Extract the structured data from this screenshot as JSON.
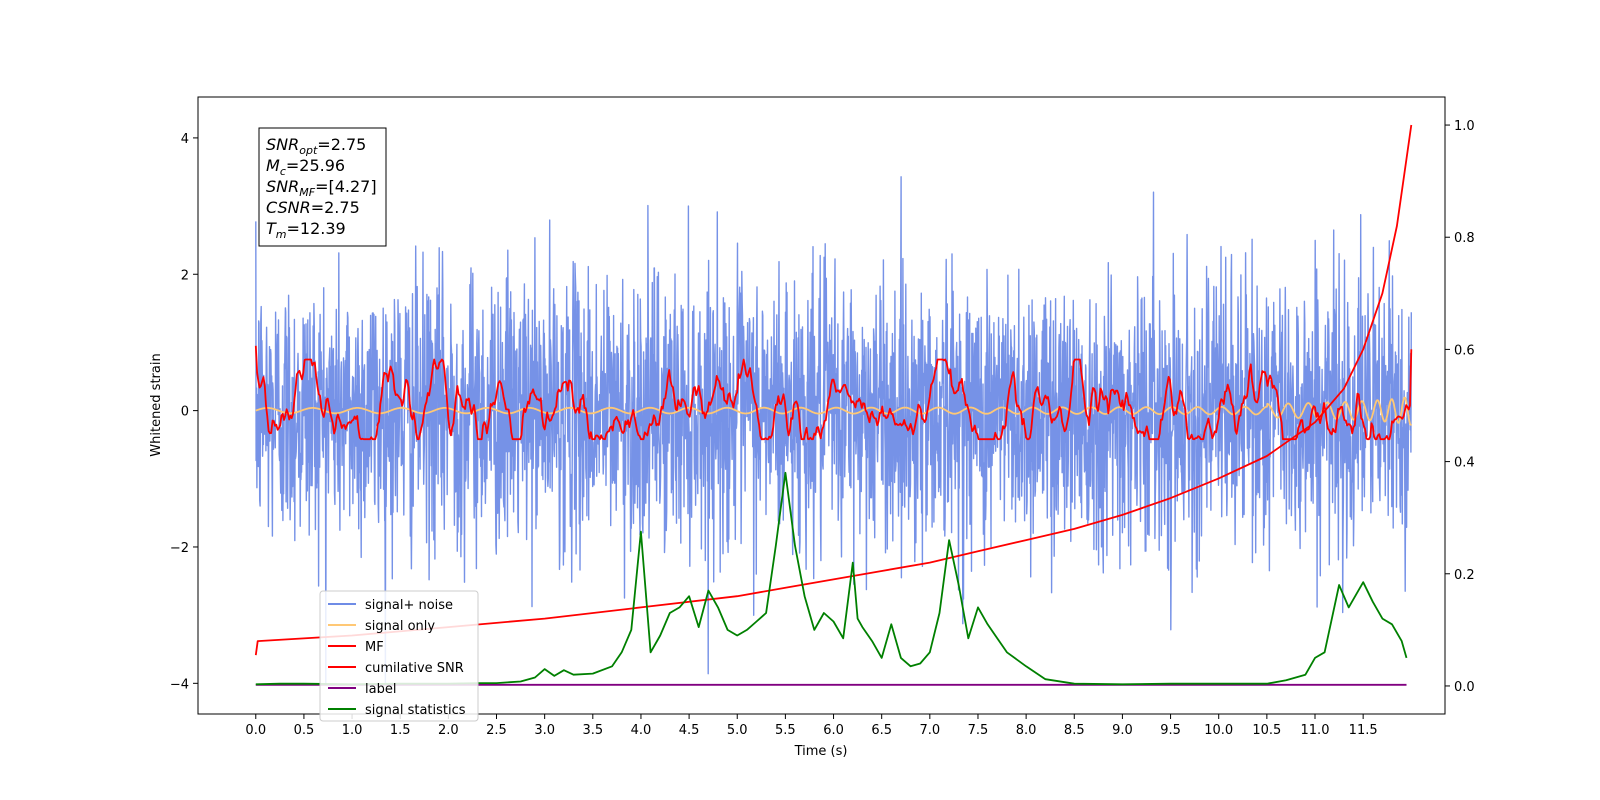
{
  "chart_data": {
    "type": "line",
    "xlabel": "Time (s)",
    "ylabel": "Whitened strain",
    "xlim": [
      -0.6,
      12.35
    ],
    "ylim": [
      -4.45,
      4.6
    ],
    "y2lim": [
      -0.05,
      1.05
    ],
    "xticks": [
      0.0,
      0.5,
      1.0,
      1.5,
      2.0,
      2.5,
      3.0,
      3.5,
      4.0,
      4.5,
      5.0,
      5.5,
      6.0,
      6.5,
      7.0,
      7.5,
      8.0,
      8.5,
      9.0,
      9.5,
      10.0,
      10.5,
      11.0,
      11.5
    ],
    "xtick_labels": [
      "0.0",
      "0.5",
      "1.0",
      "1.5",
      "2.0",
      "2.5",
      "3.0",
      "3.5",
      "4.0",
      "4.5",
      "5.0",
      "5.5",
      "6.0",
      "6.5",
      "7.0",
      "7.5",
      "8.0",
      "8.5",
      "9.0",
      "9.5",
      "10.0",
      "10.5",
      "11.0",
      "11.5"
    ],
    "yticks": [
      -4,
      -2,
      0,
      2,
      4
    ],
    "ytick_labels": [
      "−4",
      "−2",
      "0",
      "2",
      "4"
    ],
    "y2ticks": [
      0.0,
      0.2,
      0.4,
      0.6,
      0.8,
      1.0
    ],
    "y2tick_labels": [
      "0.0",
      "0.2",
      "0.4",
      "0.6",
      "0.8",
      "1.0"
    ],
    "grid": false,
    "legend_position": "lower-left",
    "series": [
      {
        "name": "signal+ noise",
        "axis": "left",
        "color": "#6f8ce6",
        "style": "noise",
        "x_range": [
          0.0,
          12.0
        ],
        "std": 1.0,
        "values": []
      },
      {
        "name": "signal only",
        "axis": "left",
        "color": "#ffc875",
        "style": "chirp",
        "x_range": [
          0.0,
          12.0
        ],
        "values": []
      },
      {
        "name": "MF",
        "axis": "left",
        "color": "#ff0000",
        "style": "smooth-noise",
        "x_range": [
          0.0,
          12.0
        ],
        "values": []
      },
      {
        "name": "cumilative SNR",
        "axis": "right",
        "color": "#ff0000",
        "x": [
          0.0,
          0.02,
          1.0,
          2.0,
          3.0,
          4.0,
          5.0,
          5.5,
          6.0,
          6.5,
          7.0,
          7.5,
          8.0,
          8.5,
          9.0,
          9.5,
          10.0,
          10.5,
          11.0,
          11.3,
          11.5,
          11.7,
          11.85,
          11.95,
          12.0
        ],
        "values": [
          0.055,
          0.08,
          0.09,
          0.105,
          0.12,
          0.14,
          0.16,
          0.175,
          0.19,
          0.205,
          0.22,
          0.24,
          0.26,
          0.28,
          0.305,
          0.335,
          0.37,
          0.41,
          0.47,
          0.53,
          0.6,
          0.7,
          0.82,
          0.94,
          1.0
        ]
      },
      {
        "name": "label",
        "axis": "right",
        "color": "#800080",
        "x": [
          0.0,
          11.95
        ],
        "values": [
          0.002,
          0.002
        ]
      },
      {
        "name": "signal statistics",
        "axis": "right",
        "color": "#008000",
        "x": [
          0.0,
          0.25,
          0.5,
          1.0,
          1.5,
          2.0,
          2.3,
          2.5,
          2.75,
          2.9,
          3.0,
          3.1,
          3.2,
          3.3,
          3.5,
          3.7,
          3.8,
          3.9,
          4.0,
          4.1,
          4.2,
          4.3,
          4.4,
          4.5,
          4.6,
          4.7,
          4.8,
          4.9,
          5.0,
          5.1,
          5.2,
          5.3,
          5.4,
          5.5,
          5.6,
          5.7,
          5.8,
          5.9,
          6.0,
          6.1,
          6.2,
          6.25,
          6.3,
          6.4,
          6.5,
          6.6,
          6.7,
          6.8,
          6.9,
          7.0,
          7.1,
          7.2,
          7.3,
          7.4,
          7.5,
          7.6,
          7.8,
          8.0,
          8.2,
          8.5,
          9.0,
          9.5,
          10.0,
          10.5,
          10.7,
          10.9,
          11.0,
          11.1,
          11.25,
          11.35,
          11.5,
          11.6,
          11.7,
          11.8,
          11.9,
          11.95
        ],
        "values": [
          0.003,
          0.004,
          0.004,
          0.003,
          0.004,
          0.004,
          0.005,
          0.005,
          0.008,
          0.015,
          0.03,
          0.018,
          0.028,
          0.02,
          0.022,
          0.035,
          0.06,
          0.1,
          0.275,
          0.06,
          0.09,
          0.13,
          0.14,
          0.16,
          0.105,
          0.17,
          0.14,
          0.1,
          0.09,
          0.1,
          0.115,
          0.13,
          0.25,
          0.38,
          0.25,
          0.16,
          0.1,
          0.13,
          0.115,
          0.085,
          0.22,
          0.12,
          0.105,
          0.08,
          0.05,
          0.11,
          0.05,
          0.035,
          0.04,
          0.06,
          0.13,
          0.26,
          0.18,
          0.085,
          0.14,
          0.11,
          0.06,
          0.035,
          0.012,
          0.004,
          0.003,
          0.004,
          0.004,
          0.004,
          0.01,
          0.02,
          0.05,
          0.06,
          0.18,
          0.14,
          0.185,
          0.15,
          0.12,
          0.11,
          0.08,
          0.05
        ]
      }
    ],
    "info_box": {
      "lines": [
        {
          "main": "SNR",
          "sub": "opt",
          "value": "=2.75"
        },
        {
          "main": "M",
          "sub": "c",
          "value": "=25.96"
        },
        {
          "main": "SNR",
          "sub": "MF",
          "value": "=[4.27]"
        },
        {
          "main": "CSNR",
          "sub": "",
          "value": "=2.75"
        },
        {
          "main": "T",
          "sub": "m",
          "value": "=12.39"
        }
      ]
    }
  }
}
